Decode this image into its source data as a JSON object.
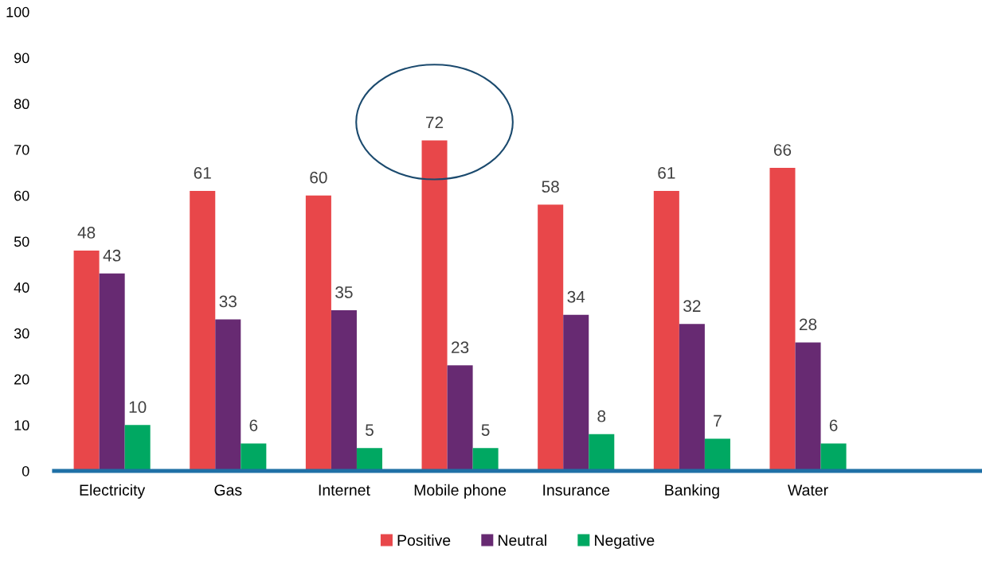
{
  "chart_data": {
    "type": "bar",
    "categories": [
      "Electricity",
      "Gas",
      "Internet",
      "Mobile phone",
      "Insurance",
      "Banking",
      "Water",
      null
    ],
    "series": [
      {
        "name": "Positive",
        "color": "#e8474a",
        "values": [
          48,
          61,
          60,
          72,
          58,
          61,
          66,
          null
        ]
      },
      {
        "name": "Neutral",
        "color": "#672a72",
        "values": [
          43,
          33,
          35,
          23,
          34,
          32,
          28,
          null
        ]
      },
      {
        "name": "Negative",
        "color": "#00a862",
        "values": [
          10,
          6,
          5,
          5,
          8,
          7,
          6,
          null
        ]
      }
    ],
    "ylim": [
      0,
      100
    ],
    "yticks": [
      0,
      10,
      20,
      30,
      40,
      50,
      60,
      70,
      80,
      90,
      100
    ],
    "data_labels": true,
    "grid": false,
    "legend": "bottom"
  }
}
